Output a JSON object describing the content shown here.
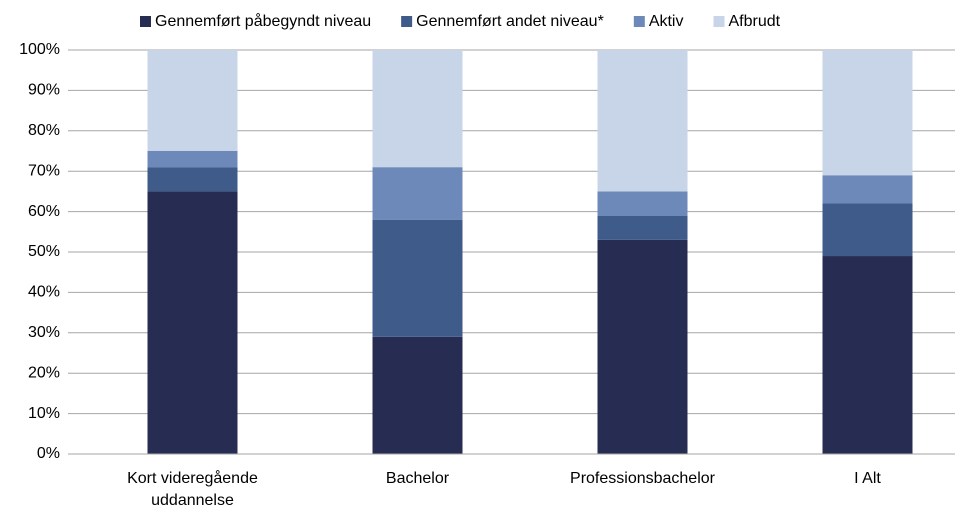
{
  "chart_data": {
    "type": "stacked_bar",
    "categories": [
      "Kort videregående uddannelse",
      "Bachelor",
      "Professionsbachelor",
      "I Alt"
    ],
    "series": [
      {
        "name": "Gennemført påbegyndt niveau",
        "color": "#262c52",
        "values": [
          65,
          29,
          53,
          49
        ]
      },
      {
        "name": "Gennemført andet niveau*",
        "color": "#3f5b8a",
        "values": [
          6,
          29,
          6,
          13
        ]
      },
      {
        "name": "Aktiv",
        "color": "#6d89b9",
        "values": [
          4,
          13,
          6,
          7
        ]
      },
      {
        "name": "Afbrudt",
        "color": "#c8d5e8",
        "values": [
          25,
          29,
          35,
          31
        ]
      }
    ],
    "ylim": [
      0,
      100
    ],
    "yticks": [
      {
        "value": 0,
        "label": "0%"
      },
      {
        "value": 10,
        "label": "10%"
      },
      {
        "value": 20,
        "label": "20%"
      },
      {
        "value": 30,
        "label": "30%"
      },
      {
        "value": 40,
        "label": "40%"
      },
      {
        "value": 50,
        "label": "50%"
      },
      {
        "value": 60,
        "label": "60%"
      },
      {
        "value": 70,
        "label": "70%"
      },
      {
        "value": 80,
        "label": "80%"
      },
      {
        "value": 90,
        "label": "90%"
      },
      {
        "value": 100,
        "label": "100%"
      }
    ],
    "grid": true,
    "legend": "top"
  }
}
